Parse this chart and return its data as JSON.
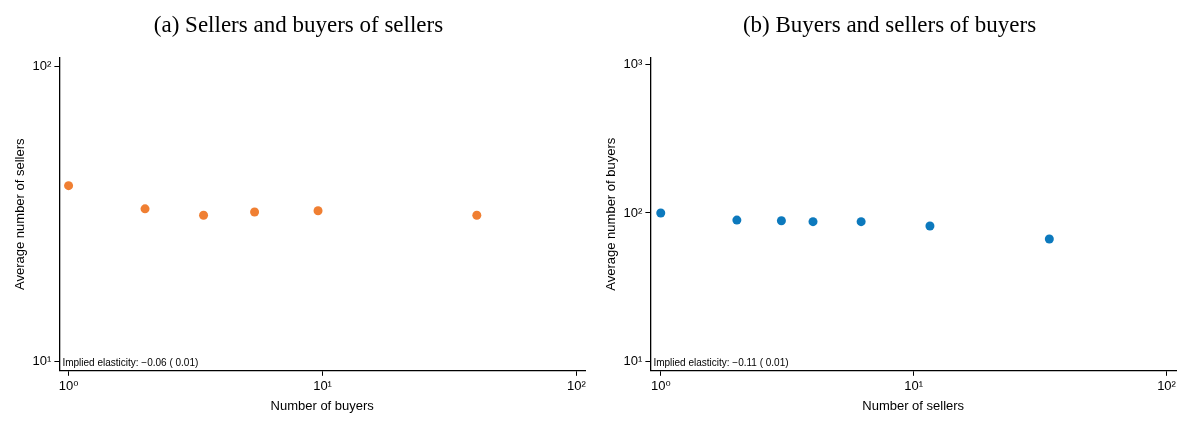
{
  "chart_data": [
    {
      "type": "scatter",
      "title": "(a) Sellers and buyers of sellers",
      "xlabel": "Number of buyers",
      "ylabel": "Average number of sellers",
      "annotations": [
        "Implied elasticity: −0.06 ( 0.01)"
      ],
      "marker": "circle",
      "log": "xy",
      "grid": false,
      "x": [
        1,
        2.0,
        3.4,
        5.4,
        9.6,
        40.5
      ],
      "series": [
        {
          "color": "#f07f32",
          "values": [
            39.4,
            32.9,
            31.3,
            32.1,
            32.4,
            31.3
          ]
        }
      ],
      "xlim": [
        0.92,
        108
      ],
      "ylim": [
        9.3,
        107
      ],
      "xticks": [
        {
          "value": 1,
          "label": "10⁰"
        },
        {
          "value": 10,
          "label": "10¹"
        },
        {
          "value": 100,
          "label": "10²"
        }
      ],
      "yticks": [
        {
          "value": 10,
          "label": "10¹"
        },
        {
          "value": 100,
          "label": "10²"
        }
      ]
    },
    {
      "type": "scatter",
      "title": "(b) Buyers and sellers of buyers",
      "xlabel": "Number of sellers",
      "ylabel": "Average number of buyers",
      "annotations": [
        "Implied elasticity: −0.11 ( 0.01)"
      ],
      "marker": "circle",
      "log": "xy",
      "grid": false,
      "x": [
        1,
        2.0,
        3.0,
        4.0,
        6.2,
        11.6,
        34.4
      ],
      "series": [
        {
          "color": "#0c79bd",
          "values": [
            100,
            89.6,
            88.7,
            87.4,
            87.4,
            81.7,
            66.7
          ]
        }
      ],
      "xlim": [
        0.91,
        109
      ],
      "ylim": [
        8.6,
        1120
      ],
      "xticks": [
        {
          "value": 1,
          "label": "10⁰"
        },
        {
          "value": 10,
          "label": "10¹"
        },
        {
          "value": 100,
          "label": "10²"
        }
      ],
      "yticks": [
        {
          "value": 10,
          "label": "10¹"
        },
        {
          "value": 100,
          "label": "10²"
        },
        {
          "value": 1000,
          "label": "10³"
        }
      ]
    }
  ]
}
